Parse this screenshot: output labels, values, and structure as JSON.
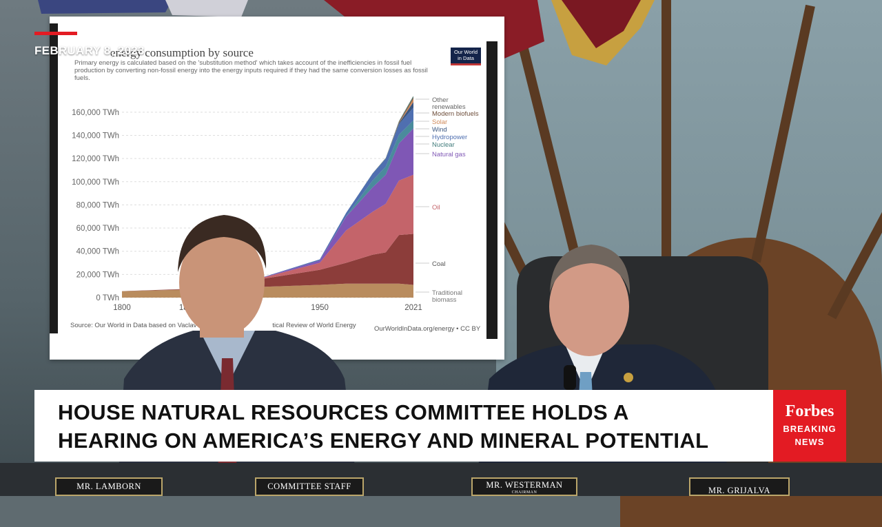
{
  "overlay": {
    "date": "FEBRUARY 8, 2023",
    "headline_line1": "HOUSE NATURAL RESOURCES COMMITTEE HOLDS A",
    "headline_line2": "HEARING ON AMERICA’S ENERGY AND MINERAL POTENTIAL",
    "brand_name": "Forbes",
    "brand_tag_line1": "BREAKING",
    "brand_tag_line2": "NEWS",
    "accent_color": "#e31b23"
  },
  "poster": {
    "title_visible": "energy consumption by source",
    "subtitle": "Primary energy is calculated based on the 'substitution method' which takes account of the inefficiencies in fossil fuel production by converting non-fossil energy into the energy inputs required if they had the same conversion losses as fossil fuels.",
    "logo_line1": "Our World",
    "logo_line2": "in Data",
    "source": "Source: Our World in Data based on Vaclav",
    "source_tail": "tical Review of World Energy",
    "credit": "OurWorldInData.org/energy • CC BY"
  },
  "nameplates": {
    "p1": "MR. LAMBORN",
    "p2": "COMMITTEE STAFF",
    "p3": "MR. WESTERMAN",
    "p3_sub": "CHAIRMAN",
    "p4": "MR. GRIJALVA"
  },
  "chart_data": {
    "type": "area",
    "title": "",
    "xlabel": "",
    "ylabel": "",
    "x": [
      1800,
      1850,
      1900,
      1950,
      1970,
      1990,
      2000,
      2010,
      2021
    ],
    "x_ticks": [
      "1800",
      "1850",
      "1950",
      "2021"
    ],
    "y_ticks": [
      "0 TWh",
      "20,000 TWh",
      "40,000 TWh",
      "60,000 TWh",
      "80,000 TWh",
      "100,000 TWh",
      "120,000 TWh",
      "140,000 TWh",
      "160,000 TWh"
    ],
    "ylim": [
      0,
      170000
    ],
    "xlim": [
      1800,
      2021
    ],
    "legend_placement": "right",
    "series": [
      {
        "name": "Traditional biomass",
        "color": "#b98c5e",
        "values": [
          5500,
          7000,
          9000,
          11000,
          12000,
          12000,
          12000,
          12000,
          11000
        ]
      },
      {
        "name": "Coal",
        "color": "#8c3d3a",
        "values": [
          100,
          500,
          6000,
          13000,
          18000,
          25000,
          27000,
          42000,
          44000
        ]
      },
      {
        "name": "Oil",
        "color": "#c4646a",
        "values": [
          0,
          0,
          200,
          6000,
          28000,
          37000,
          42000,
          47000,
          51000
        ]
      },
      {
        "name": "Natural gas",
        "color": "#7f57b5",
        "values": [
          0,
          0,
          0,
          2000,
          12000,
          21000,
          25000,
          32000,
          40000
        ]
      },
      {
        "name": "Nuclear",
        "color": "#4a8b9c",
        "values": [
          0,
          0,
          0,
          0,
          200,
          6000,
          7000,
          7500,
          7000
        ]
      },
      {
        "name": "Hydropower",
        "color": "#4f6fb0",
        "values": [
          0,
          0,
          0,
          1000,
          3000,
          6000,
          7000,
          9000,
          11000
        ]
      },
      {
        "name": "Wind",
        "color": "#3a5680",
        "values": [
          0,
          0,
          0,
          0,
          0,
          0,
          0,
          900,
          4800
        ]
      },
      {
        "name": "Solar",
        "color": "#d08a5a",
        "values": [
          0,
          0,
          0,
          0,
          0,
          0,
          0,
          100,
          2800
        ]
      },
      {
        "name": "Modern biofuels",
        "color": "#6d4d3a",
        "values": [
          0,
          0,
          0,
          0,
          0,
          0,
          100,
          900,
          1100
        ]
      },
      {
        "name": "Other renewables",
        "color": "#5a7a70",
        "values": [
          0,
          0,
          0,
          0,
          0,
          200,
          400,
          800,
          1500
        ]
      }
    ],
    "legend_order_top_to_bottom": [
      "Other renewables",
      "Modern biofuels",
      "Solar",
      "Wind",
      "Hydropower",
      "Nuclear",
      "Natural gas",
      "Oil",
      "Coal",
      "Traditional biomass"
    ],
    "legend_colors": [
      "#666666",
      "#6d4d3a",
      "#d08a5a",
      "#3a5680",
      "#4f6fb0",
      "#3f7a7a",
      "#7f57b5",
      "#c4646a",
      "#555555",
      "#777777"
    ]
  }
}
